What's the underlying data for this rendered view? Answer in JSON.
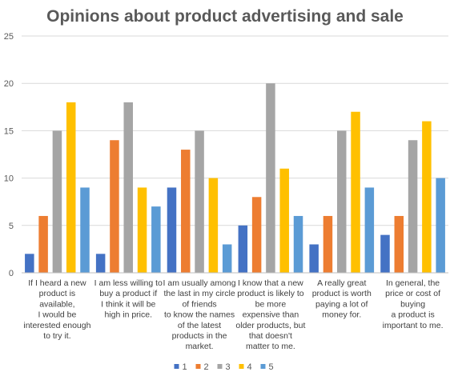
{
  "chart_data": {
    "type": "bar",
    "title": "Opinions about product advertising and sale",
    "xlabel": "",
    "ylabel": "",
    "ylim": [
      0,
      25
    ],
    "yticks": [
      0,
      5,
      10,
      15,
      20,
      25
    ],
    "grid": true,
    "legend_position": "bottom",
    "categories": [
      "If I heard a new product is available, I would be interested enough to try it.",
      "I am less willing to buy a product if I think it will be high in price.",
      "I am usually among the last in my circle of friends to know the names of the latest products in the market.",
      "I know that a new product is likely to be more expensive than older products, but that doesn't matter to me.",
      "A really great product is worth paying a lot of money for.",
      "In general, the price or cost of buying a product is important to me."
    ],
    "category_lines": [
      [
        "If I heard a new",
        "product is",
        "available,",
        "I would be",
        "interested enough",
        "to try it."
      ],
      [
        "I am less willing to",
        "buy a product if",
        "I think it will be",
        "high in price."
      ],
      [
        "I am usually among",
        "the last in my circle",
        "of friends",
        "to know the names",
        "of the latest",
        "products in the",
        "market."
      ],
      [
        "I know that a new",
        "product is likely to",
        "be more",
        "expensive than",
        "older products, but",
        "that doesn't",
        "matter to me."
      ],
      [
        "A really great",
        "product is worth",
        "paying a lot of",
        "money for."
      ],
      [
        "In general, the",
        "price or cost of",
        "buying",
        "a product is",
        "important to me."
      ]
    ],
    "series": [
      {
        "name": "1",
        "color": "#4472C4",
        "values": [
          2,
          2,
          9,
          5,
          3,
          4
        ]
      },
      {
        "name": "2",
        "color": "#ED7D31",
        "values": [
          6,
          14,
          13,
          8,
          6,
          6
        ]
      },
      {
        "name": "3",
        "color": "#A5A5A5",
        "values": [
          15,
          18,
          15,
          20,
          15,
          14
        ]
      },
      {
        "name": "4",
        "color": "#FFC000",
        "values": [
          18,
          9,
          10,
          11,
          17,
          16
        ]
      },
      {
        "name": "5",
        "color": "#5B9BD5",
        "values": [
          9,
          7,
          3,
          6,
          9,
          10
        ]
      }
    ]
  }
}
